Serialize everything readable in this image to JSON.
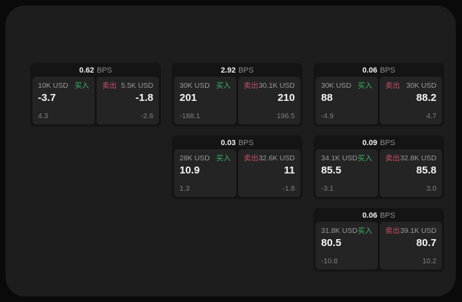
{
  "labels": {
    "buy": "买入",
    "sell": "卖出",
    "bps_suffix": "BPS"
  },
  "colors": {
    "background": "#0a0a0a",
    "panel": "#1d1d1d",
    "card": "#141414",
    "subpanel": "#242425",
    "buy_green": "#3bb35f",
    "sell_red": "#c64f62",
    "text_primary": "#f5f5f5",
    "text_secondary": "#9a9a9a"
  },
  "cards": [
    {
      "bps": "0.62",
      "buy": {
        "size": "10K USD",
        "price": "-3.7",
        "change": "4.3"
      },
      "sell": {
        "size": "5.5K USD",
        "price": "-1.8",
        "change": "-2.6"
      }
    },
    {
      "bps": "2.92",
      "buy": {
        "size": "30K USD",
        "price": "201",
        "change": "-188.1"
      },
      "sell": {
        "size": "30.1K USD",
        "price": "210",
        "change": "196.5"
      }
    },
    {
      "bps": "0.06",
      "buy": {
        "size": "30K USD",
        "price": "88",
        "change": "-4.9"
      },
      "sell": {
        "size": "30K USD",
        "price": "88.2",
        "change": "4.7"
      }
    },
    {
      "bps": "0.03",
      "buy": {
        "size": "28K USD",
        "price": "10.9",
        "change": "1.3"
      },
      "sell": {
        "size": "32.6K USD",
        "price": "11",
        "change": "-1.8"
      }
    },
    {
      "bps": "0.09",
      "buy": {
        "size": "34.1K USD",
        "price": "85.5",
        "change": "-3.1"
      },
      "sell": {
        "size": "32.8K USD",
        "price": "85.8",
        "change": "3.0"
      }
    },
    {
      "bps": "0.06",
      "buy": {
        "size": "31.8K USD",
        "price": "80.5",
        "change": "-10.8"
      },
      "sell": {
        "size": "39.1K USD",
        "price": "80.7",
        "change": "10.2"
      }
    }
  ]
}
